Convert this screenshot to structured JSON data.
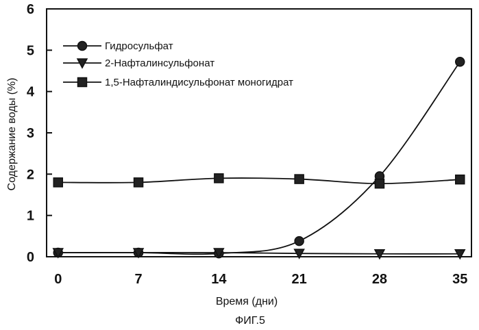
{
  "chart_data": {
    "type": "line",
    "title": "",
    "xlabel": "Время (дни)",
    "ylabel": "Содержание воды (%)",
    "x": [
      0,
      7,
      14,
      21,
      28,
      35
    ],
    "xlim": [
      -1,
      36
    ],
    "ylim": [
      0,
      6
    ],
    "xticks": [
      "0",
      "7",
      "14",
      "21",
      "28",
      "35"
    ],
    "yticks": [
      "0",
      "1",
      "2",
      "3",
      "4",
      "5",
      "6"
    ],
    "grid": false,
    "legend_position": "top-left",
    "series": [
      {
        "name": "Гидросульфат",
        "marker": "circle",
        "values": [
          0.1,
          0.1,
          0.08,
          0.38,
          1.95,
          4.72
        ]
      },
      {
        "name": "2-Нафталинсульфонат",
        "marker": "triangle-down",
        "values": [
          0.1,
          0.1,
          0.1,
          0.08,
          0.07,
          0.07
        ]
      },
      {
        "name": "1,5-Нафталиндисульфонат моногидрат",
        "marker": "square",
        "values": [
          1.8,
          1.8,
          1.9,
          1.88,
          1.77,
          1.87
        ]
      }
    ],
    "caption": "ФИГ.5"
  }
}
